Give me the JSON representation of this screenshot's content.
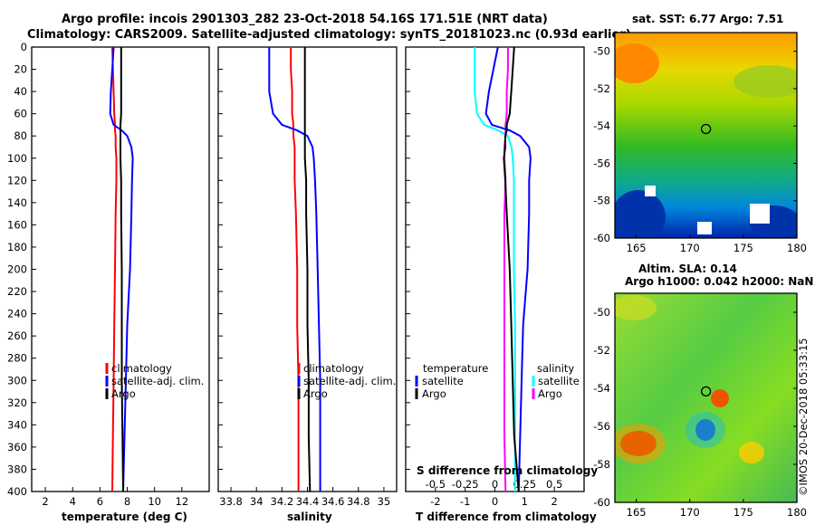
{
  "header": {
    "title_line1": "Argo profile: incois 2901303_282 23-Oct-2018 54.16S 171.51E (NRT data)",
    "title_line2": "Climatology: CARS2009. Satellite-adjusted climatology: synTS_20181023.nc (0.93d earlier)"
  },
  "colors": {
    "climatology": "#ff0000",
    "satellite": "#0000ff",
    "argo": "#000000",
    "sal_satellite": "#00ffff",
    "sal_argo": "#ff00ff"
  },
  "depth_axis": {
    "ticks": [
      0,
      20,
      40,
      60,
      80,
      100,
      120,
      140,
      160,
      180,
      200,
      220,
      240,
      260,
      280,
      300,
      320,
      340,
      360,
      380,
      400
    ]
  },
  "chart_data": [
    {
      "type": "line",
      "id": "temperature",
      "xlabel": "temperature (deg C)",
      "xlim": [
        1,
        14
      ],
      "ylim": [
        0,
        400
      ],
      "xticks": [
        2,
        4,
        6,
        8,
        10,
        12
      ],
      "depths": [
        0,
        20,
        40,
        60,
        70,
        75,
        80,
        90,
        100,
        120,
        150,
        200,
        250,
        300,
        350,
        400
      ],
      "series": [
        {
          "name": "climatology",
          "values": [
            6.9,
            6.95,
            7.0,
            7.05,
            7.1,
            7.1,
            7.15,
            7.15,
            7.2,
            7.2,
            7.15,
            7.1,
            7.05,
            7.0,
            6.95,
            6.9
          ]
        },
        {
          "name": "satellite-adj. clim.",
          "values": [
            7.0,
            6.9,
            6.8,
            6.75,
            7.0,
            7.6,
            8.0,
            8.3,
            8.4,
            8.35,
            8.3,
            8.2,
            8.0,
            7.9,
            7.8,
            7.7
          ]
        },
        {
          "name": "Argo",
          "values": [
            7.55,
            7.55,
            7.55,
            7.55,
            7.5,
            7.5,
            7.5,
            7.5,
            7.5,
            7.55,
            7.55,
            7.6,
            7.6,
            7.6,
            7.65,
            7.7
          ]
        }
      ],
      "legend": [
        "climatology",
        "satellite-adj. clim.",
        "Argo"
      ]
    },
    {
      "type": "line",
      "id": "salinity",
      "xlabel": "salinity",
      "xlim": [
        33.7,
        35.1
      ],
      "ylim": [
        0,
        400
      ],
      "xticks": [
        33.8,
        34,
        34.2,
        34.4,
        34.6,
        34.8,
        35
      ],
      "depths": [
        0,
        20,
        40,
        60,
        70,
        75,
        80,
        90,
        100,
        120,
        150,
        200,
        250,
        300,
        350,
        400
      ],
      "series": [
        {
          "name": "climatology",
          "values": [
            34.27,
            34.27,
            34.28,
            34.28,
            34.29,
            34.29,
            34.29,
            34.3,
            34.3,
            34.3,
            34.31,
            34.32,
            34.32,
            34.33,
            34.33,
            34.33
          ]
        },
        {
          "name": "satellite-adj. clim.",
          "values": [
            34.1,
            34.1,
            34.1,
            34.13,
            34.2,
            34.32,
            34.4,
            34.44,
            34.45,
            34.46,
            34.47,
            34.48,
            34.49,
            34.5,
            34.5,
            34.5
          ]
        },
        {
          "name": "Argo",
          "values": [
            34.38,
            34.38,
            34.38,
            34.38,
            34.38,
            34.38,
            34.38,
            34.38,
            34.38,
            34.39,
            34.39,
            34.4,
            34.4,
            34.41,
            34.41,
            34.42
          ]
        }
      ],
      "legend": [
        "climatology",
        "satellite-adj. clim.",
        "Argo"
      ]
    },
    {
      "type": "line",
      "id": "difference",
      "xlabel": "T difference from climatology",
      "xlabel_top": "S difference from climatology",
      "xlim": [
        -3,
        3
      ],
      "ylim": [
        0,
        400
      ],
      "xticks": [
        -2,
        -1,
        0,
        1,
        2
      ],
      "xticks_top": [
        -0.5,
        -0.25,
        0,
        0.25,
        0.5
      ],
      "xticklabels_top": [
        "-0.5",
        "-0.25",
        "0",
        "0.25",
        "0.5"
      ],
      "depths": [
        0,
        20,
        40,
        60,
        70,
        75,
        80,
        90,
        100,
        120,
        150,
        200,
        250,
        300,
        350,
        400
      ],
      "series": [
        {
          "name": "T satellite",
          "values": [
            0.1,
            -0.05,
            -0.2,
            -0.3,
            -0.1,
            0.5,
            0.85,
            1.15,
            1.2,
            1.15,
            1.15,
            1.1,
            0.95,
            0.9,
            0.85,
            0.8
          ]
        },
        {
          "name": "T Argo",
          "values": [
            0.65,
            0.6,
            0.55,
            0.5,
            0.4,
            0.4,
            0.35,
            0.35,
            0.3,
            0.35,
            0.4,
            0.5,
            0.55,
            0.6,
            0.65,
            0.8
          ]
        },
        {
          "name": "S satellite",
          "values": [
            -0.17,
            -0.17,
            -0.17,
            -0.15,
            -0.09,
            0.03,
            0.11,
            0.14,
            0.15,
            0.16,
            0.16,
            0.16,
            0.17,
            0.17,
            0.17,
            0.17
          ]
        },
        {
          "name": "S Argo",
          "values": [
            0.11,
            0.11,
            0.1,
            0.1,
            0.09,
            0.09,
            0.09,
            0.08,
            0.08,
            0.09,
            0.08,
            0.08,
            0.08,
            0.08,
            0.08,
            0.09
          ]
        }
      ],
      "legend_temperature_title": "temperature",
      "legend_salinity_title": "salinity",
      "legend_entries": [
        "satellite",
        "Argo"
      ]
    },
    {
      "type": "heatmap",
      "id": "sst_map",
      "title": "sat. SST: 6.77 Argo: 7.51",
      "xlim": [
        163,
        180
      ],
      "ylim": [
        -60,
        -49
      ],
      "xticks": [
        165,
        170,
        175,
        180
      ],
      "yticks": [
        -50,
        -52,
        -54,
        -56,
        -58,
        -60
      ],
      "argo_position": [
        171.51,
        -54.16
      ]
    },
    {
      "type": "heatmap",
      "id": "sla_map",
      "title_line1": "Altim. SLA: 0.14",
      "title_line2": "Argo h1000: 0.042 h2000: NaN",
      "xlim": [
        163,
        180
      ],
      "ylim": [
        -60,
        -49
      ],
      "xticks": [
        165,
        170,
        175,
        180
      ],
      "yticks": [
        -50,
        -52,
        -54,
        -56,
        -58,
        -60
      ],
      "argo_position": [
        171.51,
        -54.16
      ]
    }
  ],
  "watermark": "©IMOS 20-Dec-2018 05:33:15"
}
